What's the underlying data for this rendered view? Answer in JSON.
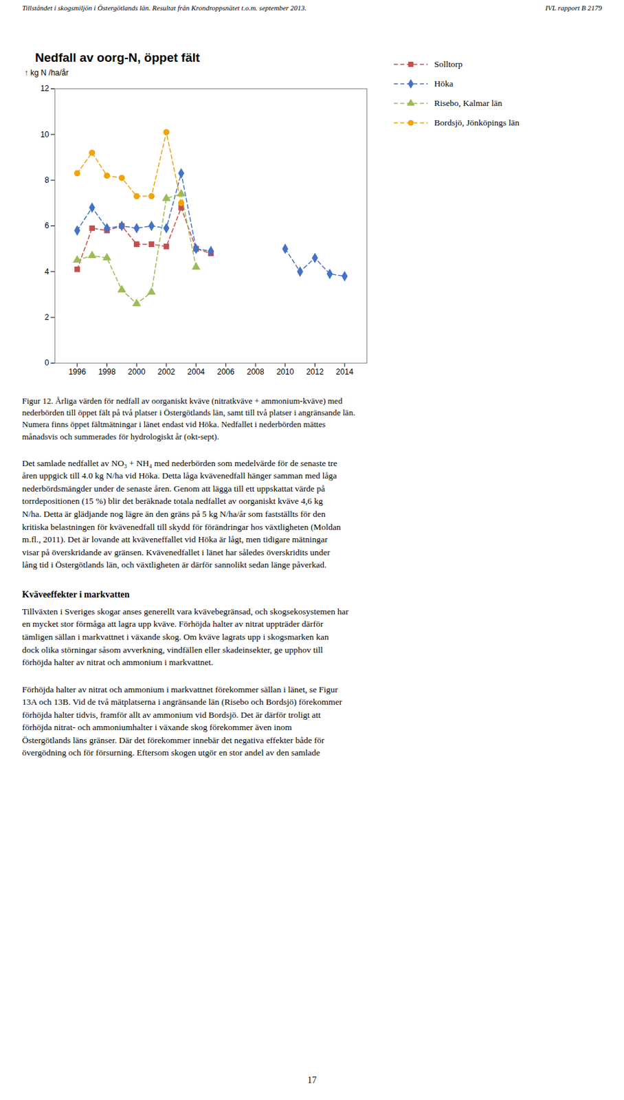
{
  "chart_data": {
    "type": "line",
    "title": "Nedfall av oorg-N, öppet fält",
    "ylabel": "kg N /ha/år",
    "x": [
      1996,
      1997,
      1998,
      1999,
      2000,
      2001,
      2002,
      2003,
      2004,
      2005,
      2006,
      2007,
      2008,
      2009,
      2010,
      2011,
      2012,
      2013,
      2014
    ],
    "series": [
      {
        "name": "Solltorp",
        "color": "#c0504d",
        "marker": "square",
        "line_style": "dashed",
        "values": [
          4.1,
          5.9,
          5.8,
          6.0,
          5.2,
          5.2,
          5.1,
          6.8,
          5.0,
          4.8,
          null,
          null,
          null,
          null,
          null,
          null,
          null,
          null,
          null
        ]
      },
      {
        "name": "Höka",
        "color": "#4472c4",
        "marker": "diamond",
        "line_style": "dashed",
        "values": [
          5.8,
          6.8,
          5.9,
          6.0,
          5.9,
          6.0,
          5.9,
          8.3,
          5.0,
          4.9,
          null,
          null,
          null,
          null,
          5.0,
          4.0,
          4.6,
          3.9,
          3.8
        ]
      },
      {
        "name": "Risebo, Kalmar län",
        "color": "#9bbb59",
        "marker": "triangle",
        "line_style": "dashed",
        "values": [
          4.5,
          4.7,
          4.6,
          3.2,
          2.6,
          3.1,
          7.2,
          7.4,
          4.2,
          null,
          null,
          null,
          null,
          null,
          null,
          null,
          null,
          null,
          null
        ]
      },
      {
        "name": "Bordsjö, Jönköpings län",
        "color": "#f0a30a",
        "marker": "circle",
        "line_style": "dashed",
        "values": [
          8.3,
          9.2,
          8.2,
          8.1,
          7.3,
          7.3,
          10.1,
          7.0,
          null,
          null,
          null,
          null,
          null,
          null,
          null,
          null,
          null,
          null,
          null
        ]
      }
    ],
    "xlim": [
      1994.5,
      2015.5
    ],
    "xticks": [
      1996,
      1998,
      2000,
      2002,
      2004,
      2006,
      2008,
      2010,
      2012,
      2014
    ],
    "ylim": [
      0,
      12
    ],
    "yticks": [
      0,
      2,
      4,
      6,
      8,
      10,
      12
    ],
    "grid": false,
    "legend": "upper right",
    "annotations": [
      "Tillståndet i skogsmiljön i Östergötlands län. Resultat från Krondroppsnätet t.o.m. september 2013.",
      "IVL rapport B 2179",
      "Figur 12. Årliga värden för nedfall av oorganiskt kväve (nitratkväve + ammonium-kväve) med\nnederbörden till öppet fält på två platser i Östergötlands län, samt till två platser i angränsande län.\nNumera finns öppet fältmätningar i länet endast vid Höka. Nedfallet i nederbörden mättes\nmånadsvis och summerades för hydrologiskt år (okt-sept).",
      "Det samlade nedfallet av NO₃ + NH₄ med nederbörden som medelvärde för de senaste tre\nåren uppgick till 4.0 kg N/ha vid Höka. Detta låga kvävenedfall hänger samman med låga\nnederbördsmängder under de senaste åren. Genom att lägga till ett uppskattat värde på\ntorrdepositionen (15 %) blir det beräknade totala nedfallet av oorganiskt kväve 4,6 kg\nN/ha. Detta är glädjande nog lägre än den gräns på 5 kg N/ha/år som fastställts för den\nkritiska belastningen för kvävenedfall till skydd för förändringar hos växtligheten (Moldan\nm.fl., 2011). Det är lovande att kväveneffallet vid Höka är lågt, men tidigare mätningar\nvisar på överskridande av gränsen. Kvävenedfallet i länet har således överskridits under\nlång tid i Östergötlands län, och växtligheten är därför sannolikt sedan länge påverkad.",
      "Kväveeffekter i markvatten",
      "Tillväxten i Sveriges skogar anses generellt vara kvävebegränsad, och skogsekosystemen har\nen mycket stor förmåga att lagra upp kväve. Förhöjda halter av nitrat uppträder därför\ntämligen sällan i markvattnet i växande skog. Om kväve lagrats upp i skogsmarken kan\ndock olika störningar såsom avverkning, vindfällen eller skadeinsekter, ge upphov till\nförhöjda halter av nitrat och ammonium i markvattnet.",
      "Förhöjda halter av nitrat och ammonium i markvattnet förekommer sällan i länet, se Figur\n13A och 13B. Vid de två mätplatserna i angränsande län (Risebo och Bordsjö) förekommer\nförhöjda halter tidvis, framför allt av ammonium vid Bordsjö. Det är därför troligt att\nförhöjda nitrat- och ammoniumhalter i växande skog förekommer även inom\nÖstergötlands läns gränser. Där det förekommer innebär det negativa effekter både för\növergödning och för försurning. Eftersom skogen utgör en stor andel av den samlade",
      "17"
    ]
  }
}
